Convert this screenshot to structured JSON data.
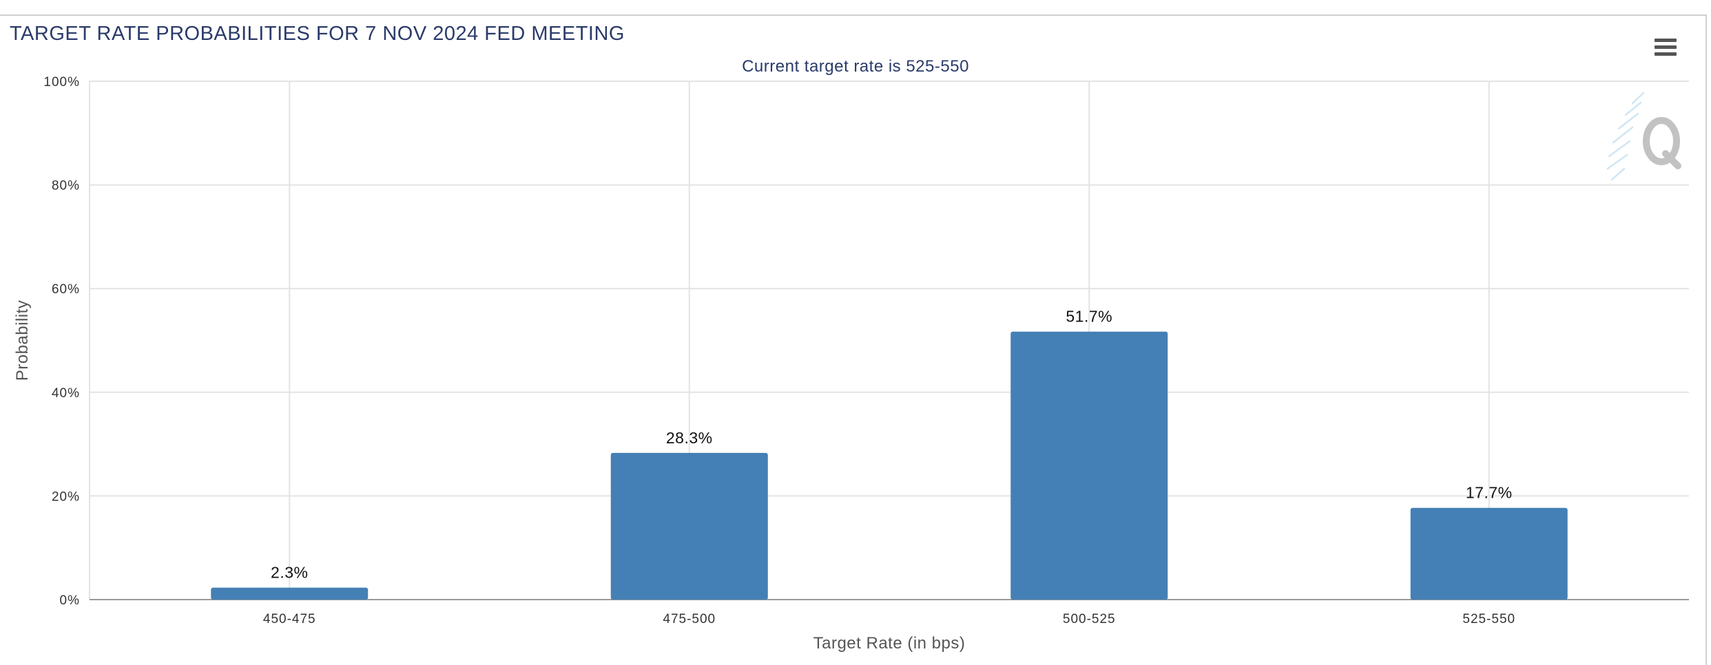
{
  "header": {
    "menu_icon": "hamburger-menu-icon",
    "watermark_icon": "q-logo-watermark"
  },
  "colors": {
    "title": "#2a3a6a",
    "bar": "#4480b5",
    "grid": "#e3e3e3",
    "axis": "#999999"
  },
  "chart_data": {
    "type": "bar",
    "title": "TARGET RATE PROBABILITIES FOR 7 NOV 2024 FED MEETING",
    "subtitle": "Current target rate is 525-550",
    "xlabel": "Target Rate (in bps)",
    "ylabel": "Probability",
    "categories": [
      "450-475",
      "475-500",
      "500-525",
      "525-550"
    ],
    "values": [
      2.3,
      28.3,
      51.7,
      17.7
    ],
    "data_labels": [
      "2.3%",
      "28.3%",
      "51.7%",
      "17.7%"
    ],
    "ylim": [
      0,
      100
    ],
    "yticks": [
      0,
      20,
      40,
      60,
      80,
      100
    ],
    "ytick_labels": [
      "0%",
      "20%",
      "40%",
      "60%",
      "80%",
      "100%"
    ],
    "grid": true,
    "legend": "none"
  }
}
